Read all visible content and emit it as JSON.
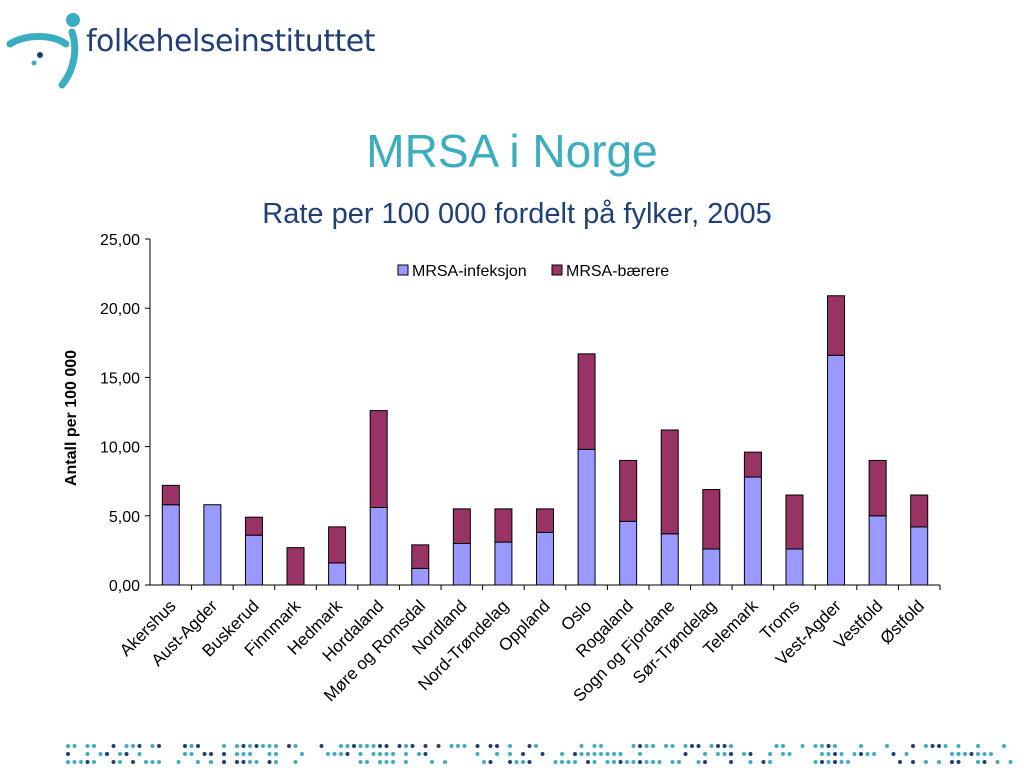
{
  "logo": {
    "text": "folkehelseinstituttet",
    "icon": "fhi-figure-icon"
  },
  "slide": {
    "title": "MRSA i Norge",
    "subtitle": "Rate per 100 000 fordelt på fylker, 2005"
  },
  "colors": {
    "infeksjon": "#9999ff",
    "baerere": "#993366",
    "title": "#3aaec0",
    "subtitle": "#1f3f77",
    "dots": "#3aaec0"
  },
  "chart_data": {
    "type": "bar",
    "stacked": true,
    "title": "",
    "xlabel": "",
    "ylabel": "Antall per 100 000",
    "ylim": [
      0,
      25
    ],
    "yticks": [
      "0,00",
      "5,00",
      "10,00",
      "15,00",
      "20,00",
      "25,00"
    ],
    "legend_position": "top",
    "categories": [
      "Akershus",
      "Aust-Agder",
      "Buskerud",
      "Finnmark",
      "Hedmark",
      "Hordaland",
      "Møre og Romsdal",
      "Nordland",
      "Nord-Trøndelag",
      "Oppland",
      "Oslo",
      "Rogaland",
      "Sogn og Fjordane",
      "Sør-Trøndelag",
      "Telemark",
      "Troms",
      "Vest-Agder",
      "Vestfold",
      "Østfold"
    ],
    "series": [
      {
        "name": "MRSA-infeksjon",
        "values": [
          5.8,
          5.8,
          3.6,
          0.0,
          1.6,
          5.6,
          1.2,
          3.0,
          3.1,
          3.8,
          9.8,
          4.6,
          3.7,
          2.6,
          7.8,
          2.6,
          16.6,
          5.0,
          4.2
        ]
      },
      {
        "name": "MRSA-bærere",
        "values": [
          1.4,
          0.0,
          1.3,
          2.7,
          2.6,
          7.0,
          1.7,
          2.5,
          2.4,
          1.7,
          6.9,
          4.4,
          7.5,
          4.3,
          1.8,
          3.9,
          4.3,
          4.0,
          2.3
        ]
      }
    ]
  }
}
